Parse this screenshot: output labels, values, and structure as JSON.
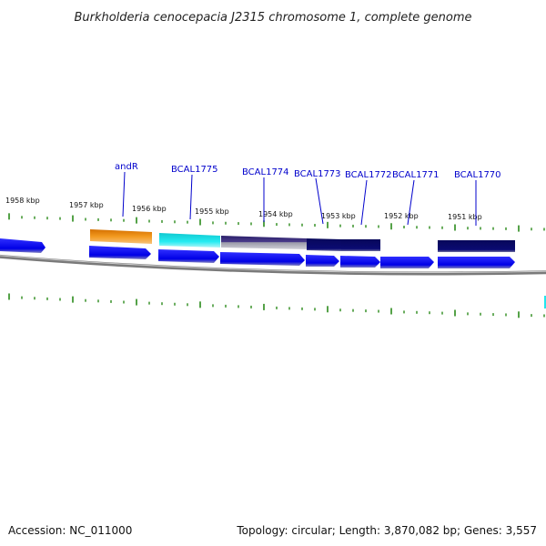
{
  "title": "Burkholderia cenocepacia J2315 chromosome 1, complete genome",
  "footer": {
    "accession": "Accession: NC_011000",
    "summary": "Topology: circular; Length: 3,870,082 bp; Genes: 3,557"
  },
  "ruler": {
    "labels": [
      "1958 kbp",
      "1957 kbp",
      "1956 kbp",
      "1955 kbp",
      "1954 kbp",
      "1953 kbp",
      "1952 kbp",
      "1951 kbp"
    ]
  },
  "genes": [
    {
      "name": "andR"
    },
    {
      "name": "BCAL1775"
    },
    {
      "name": "BCAL1774"
    },
    {
      "name": "BCAL1773"
    },
    {
      "name": "BCAL1772"
    },
    {
      "name": "BCAL1771"
    },
    {
      "name": "BCAL1770"
    }
  ],
  "colors": {
    "orf": "#0000ee",
    "andR": "#f08a00",
    "BCAL1775": "#22e6ee",
    "BCAL1774": "#3a2c7a",
    "dark_gene": "#0a0a6a",
    "ticks": "#2a8a1a",
    "backbone": "#7a7a7a"
  }
}
